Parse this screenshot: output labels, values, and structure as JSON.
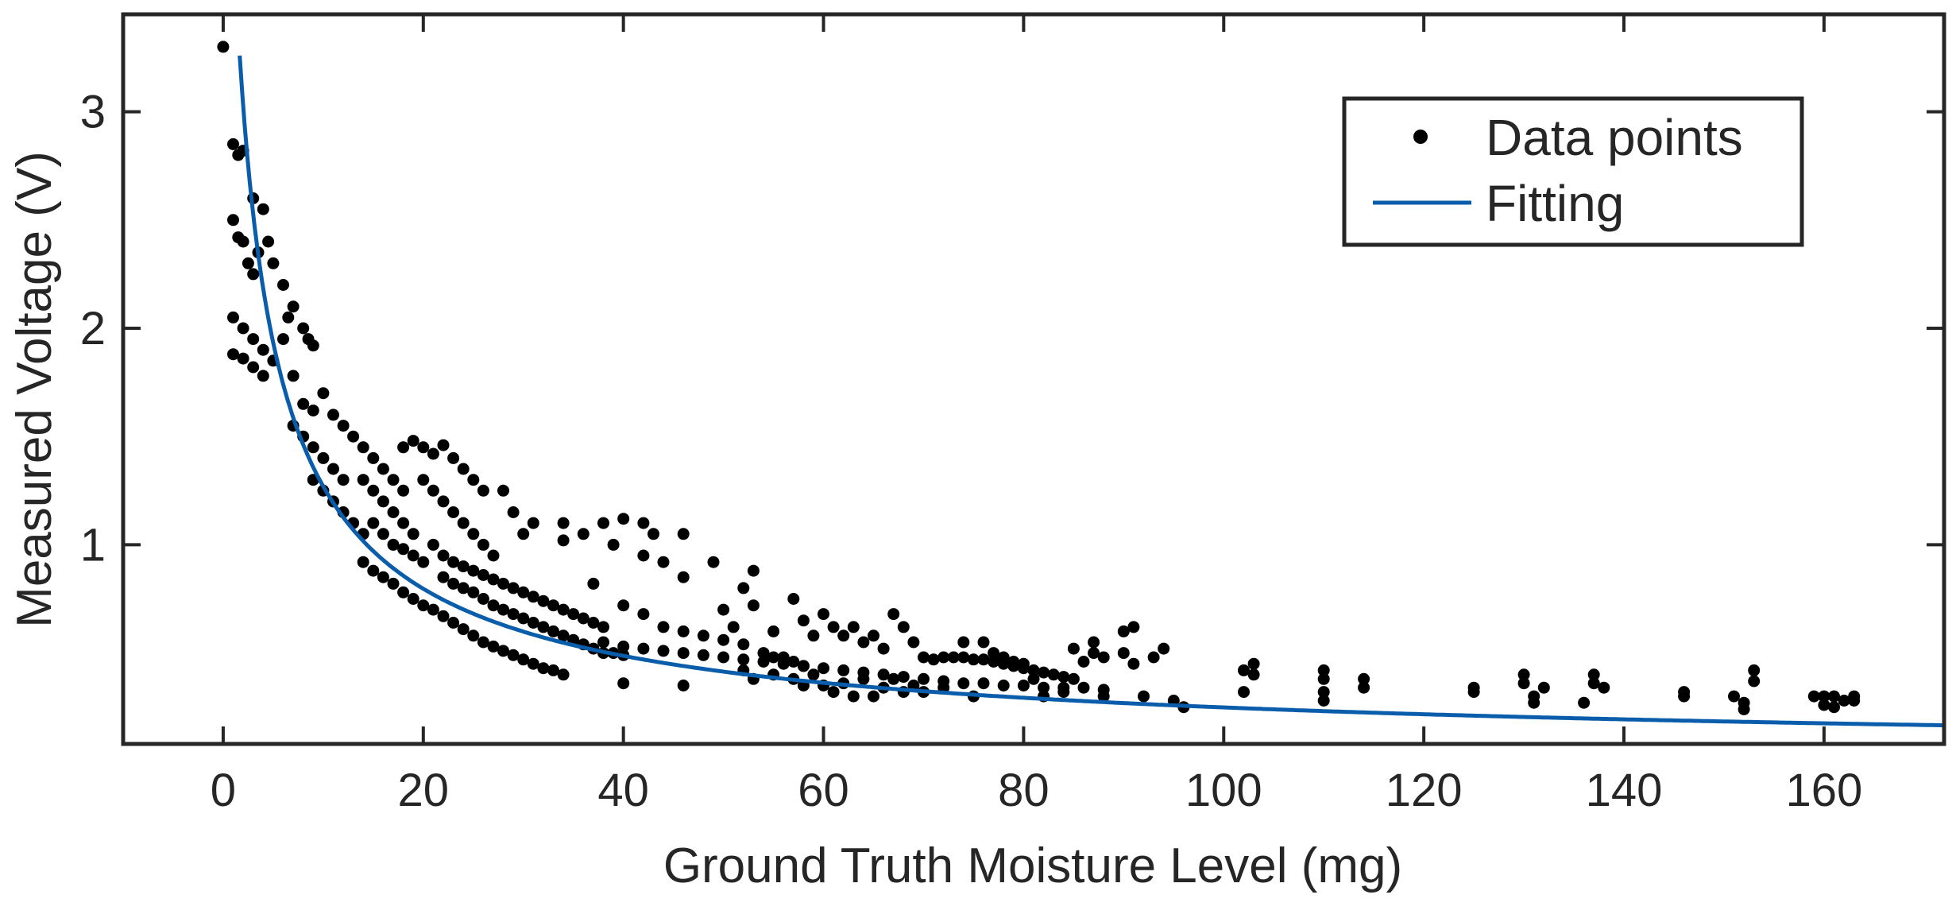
{
  "chart_data": {
    "type": "scatter",
    "title": "",
    "xlabel": "Ground Truth Moisture Level (mg)",
    "ylabel": "Measured Voltage (V)",
    "xlim": [
      -10,
      172
    ],
    "ylim": [
      0.08,
      3.45
    ],
    "xticks": [
      0,
      20,
      40,
      60,
      80,
      100,
      120,
      140,
      160
    ],
    "yticks": [
      1,
      2,
      3
    ],
    "grid": false,
    "legend": {
      "position": "top-right",
      "entries": [
        {
          "label": "Data points",
          "kind": "marker",
          "color": "#000000"
        },
        {
          "label": "Fitting",
          "kind": "line",
          "color": "#0A5DAA"
        }
      ]
    },
    "series": [
      {
        "name": "Data points",
        "kind": "scatter",
        "color": "#000000",
        "points": [
          [
            0,
            3.3
          ],
          [
            1,
            2.85
          ],
          [
            1.5,
            2.8
          ],
          [
            2,
            2.82
          ],
          [
            1,
            2.5
          ],
          [
            1.5,
            2.42
          ],
          [
            2,
            2.4
          ],
          [
            2.5,
            2.3
          ],
          [
            3,
            2.25
          ],
          [
            3.5,
            2.35
          ],
          [
            3,
            2.6
          ],
          [
            4,
            2.55
          ],
          [
            4.5,
            2.4
          ],
          [
            5,
            2.3
          ],
          [
            1,
            2.05
          ],
          [
            2,
            2.0
          ],
          [
            3,
            1.95
          ],
          [
            4,
            1.9
          ],
          [
            5,
            1.85
          ],
          [
            1,
            1.88
          ],
          [
            2,
            1.86
          ],
          [
            3,
            1.82
          ],
          [
            4,
            1.78
          ],
          [
            6,
            2.2
          ],
          [
            6.5,
            2.05
          ],
          [
            7,
            2.1
          ],
          [
            8,
            2.0
          ],
          [
            8.5,
            1.95
          ],
          [
            9,
            1.92
          ],
          [
            6,
            1.95
          ],
          [
            7,
            1.78
          ],
          [
            8,
            1.65
          ],
          [
            9,
            1.62
          ],
          [
            10,
            1.7
          ],
          [
            11,
            1.6
          ],
          [
            12,
            1.55
          ],
          [
            7,
            1.55
          ],
          [
            8,
            1.5
          ],
          [
            9,
            1.45
          ],
          [
            10,
            1.4
          ],
          [
            11,
            1.35
          ],
          [
            12,
            1.3
          ],
          [
            9,
            1.3
          ],
          [
            10,
            1.25
          ],
          [
            11,
            1.2
          ],
          [
            12,
            1.15
          ],
          [
            13,
            1.1
          ],
          [
            14,
            1.05
          ],
          [
            13,
            1.5
          ],
          [
            14,
            1.45
          ],
          [
            15,
            1.4
          ],
          [
            16,
            1.35
          ],
          [
            17,
            1.3
          ],
          [
            18,
            1.25
          ],
          [
            14,
            1.3
          ],
          [
            15,
            1.25
          ],
          [
            16,
            1.2
          ],
          [
            17,
            1.15
          ],
          [
            18,
            1.1
          ],
          [
            19,
            1.05
          ],
          [
            15,
            1.1
          ],
          [
            16,
            1.05
          ],
          [
            17,
            1.0
          ],
          [
            18,
            0.98
          ],
          [
            19,
            0.95
          ],
          [
            20,
            0.92
          ],
          [
            14,
            0.92
          ],
          [
            15,
            0.88
          ],
          [
            16,
            0.85
          ],
          [
            17,
            0.82
          ],
          [
            18,
            0.78
          ],
          [
            19,
            0.75
          ],
          [
            20,
            0.72
          ],
          [
            21,
            0.7
          ],
          [
            22,
            0.67
          ],
          [
            23,
            0.64
          ],
          [
            24,
            0.61
          ],
          [
            25,
            0.58
          ],
          [
            26,
            0.55
          ],
          [
            27,
            0.53
          ],
          [
            28,
            0.51
          ],
          [
            29,
            0.49
          ],
          [
            30,
            0.47
          ],
          [
            31,
            0.45
          ],
          [
            32,
            0.43
          ],
          [
            33,
            0.42
          ],
          [
            34,
            0.4
          ],
          [
            18,
            1.45
          ],
          [
            19,
            1.48
          ],
          [
            20,
            1.45
          ],
          [
            21,
            1.42
          ],
          [
            22,
            1.46
          ],
          [
            23,
            1.4
          ],
          [
            24,
            1.35
          ],
          [
            25,
            1.3
          ],
          [
            20,
            1.3
          ],
          [
            21,
            1.25
          ],
          [
            22,
            1.2
          ],
          [
            23,
            1.15
          ],
          [
            24,
            1.1
          ],
          [
            25,
            1.05
          ],
          [
            26,
            1.0
          ],
          [
            27,
            0.95
          ],
          [
            21,
            1.0
          ],
          [
            22,
            0.95
          ],
          [
            23,
            0.92
          ],
          [
            24,
            0.9
          ],
          [
            25,
            0.88
          ],
          [
            26,
            0.86
          ],
          [
            27,
            0.84
          ],
          [
            28,
            0.82
          ],
          [
            29,
            0.8
          ],
          [
            30,
            0.78
          ],
          [
            31,
            0.76
          ],
          [
            32,
            0.74
          ],
          [
            33,
            0.72
          ],
          [
            34,
            0.7
          ],
          [
            35,
            0.68
          ],
          [
            36,
            0.66
          ],
          [
            37,
            0.64
          ],
          [
            38,
            0.62
          ],
          [
            22,
            0.85
          ],
          [
            23,
            0.82
          ],
          [
            24,
            0.8
          ],
          [
            25,
            0.78
          ],
          [
            26,
            0.75
          ],
          [
            27,
            0.72
          ],
          [
            28,
            0.7
          ],
          [
            29,
            0.68
          ],
          [
            30,
            0.66
          ],
          [
            31,
            0.64
          ],
          [
            32,
            0.62
          ],
          [
            33,
            0.6
          ],
          [
            34,
            0.58
          ],
          [
            35,
            0.56
          ],
          [
            36,
            0.54
          ],
          [
            37,
            0.52
          ],
          [
            38,
            0.5
          ],
          [
            39,
            0.5
          ],
          [
            40,
            0.49
          ],
          [
            26,
            1.25
          ],
          [
            28,
            1.25
          ],
          [
            29,
            1.15
          ],
          [
            30,
            1.05
          ],
          [
            31,
            1.1
          ],
          [
            34,
            1.1
          ],
          [
            34,
            1.02
          ],
          [
            36,
            1.05
          ],
          [
            38,
            1.1
          ],
          [
            39,
            1.0
          ],
          [
            40,
            1.12
          ],
          [
            42,
            1.1
          ],
          [
            43,
            1.05
          ],
          [
            42,
            0.95
          ],
          [
            44,
            0.92
          ],
          [
            46,
            1.05
          ],
          [
            46,
            0.85
          ],
          [
            49,
            0.92
          ],
          [
            52,
            0.8
          ],
          [
            53,
            0.88
          ],
          [
            37,
            0.82
          ],
          [
            40,
            0.72
          ],
          [
            42,
            0.68
          ],
          [
            44,
            0.62
          ],
          [
            46,
            0.6
          ],
          [
            48,
            0.58
          ],
          [
            50,
            0.56
          ],
          [
            52,
            0.54
          ],
          [
            54,
            0.5
          ],
          [
            55,
            0.48
          ],
          [
            56,
            0.48
          ],
          [
            57,
            0.46
          ],
          [
            58,
            0.44
          ],
          [
            38,
            0.55
          ],
          [
            40,
            0.53
          ],
          [
            42,
            0.52
          ],
          [
            44,
            0.51
          ],
          [
            46,
            0.5
          ],
          [
            48,
            0.49
          ],
          [
            50,
            0.48
          ],
          [
            52,
            0.47
          ],
          [
            54,
            0.46
          ],
          [
            56,
            0.45
          ],
          [
            58,
            0.44
          ],
          [
            60,
            0.43
          ],
          [
            62,
            0.42
          ],
          [
            64,
            0.41
          ],
          [
            66,
            0.4
          ],
          [
            68,
            0.39
          ],
          [
            70,
            0.38
          ],
          [
            72,
            0.37
          ],
          [
            74,
            0.36
          ],
          [
            76,
            0.36
          ],
          [
            78,
            0.35
          ],
          [
            80,
            0.35
          ],
          [
            82,
            0.34
          ],
          [
            84,
            0.34
          ],
          [
            86,
            0.34
          ],
          [
            88,
            0.33
          ],
          [
            40,
            0.36
          ],
          [
            46,
            0.35
          ],
          [
            50,
            0.7
          ],
          [
            51,
            0.62
          ],
          [
            53,
            0.72
          ],
          [
            55,
            0.6
          ],
          [
            57,
            0.75
          ],
          [
            58,
            0.65
          ],
          [
            59,
            0.58
          ],
          [
            60,
            0.68
          ],
          [
            61,
            0.62
          ],
          [
            62,
            0.58
          ],
          [
            63,
            0.62
          ],
          [
            64,
            0.55
          ],
          [
            65,
            0.58
          ],
          [
            66,
            0.52
          ],
          [
            67,
            0.68
          ],
          [
            68,
            0.62
          ],
          [
            69,
            0.55
          ],
          [
            52,
            0.42
          ],
          [
            53,
            0.38
          ],
          [
            55,
            0.4
          ],
          [
            57,
            0.38
          ],
          [
            58,
            0.35
          ],
          [
            59,
            0.4
          ],
          [
            60,
            0.35
          ],
          [
            61,
            0.32
          ],
          [
            62,
            0.36
          ],
          [
            63,
            0.3
          ],
          [
            64,
            0.38
          ],
          [
            65,
            0.3
          ],
          [
            66,
            0.34
          ],
          [
            67,
            0.38
          ],
          [
            68,
            0.32
          ],
          [
            69,
            0.35
          ],
          [
            70,
            0.48
          ],
          [
            71,
            0.47
          ],
          [
            72,
            0.48
          ],
          [
            73,
            0.48
          ],
          [
            74,
            0.48
          ],
          [
            75,
            0.47
          ],
          [
            76,
            0.47
          ],
          [
            77,
            0.46
          ],
          [
            78,
            0.45
          ],
          [
            79,
            0.44
          ],
          [
            80,
            0.43
          ],
          [
            81,
            0.42
          ],
          [
            82,
            0.41
          ],
          [
            83,
            0.4
          ],
          [
            84,
            0.39
          ],
          [
            85,
            0.38
          ],
          [
            70,
            0.32
          ],
          [
            72,
            0.34
          ],
          [
            74,
            0.55
          ],
          [
            75,
            0.3
          ],
          [
            76,
            0.55
          ],
          [
            77,
            0.5
          ],
          [
            78,
            0.48
          ],
          [
            79,
            0.46
          ],
          [
            80,
            0.45
          ],
          [
            81,
            0.38
          ],
          [
            82,
            0.3
          ],
          [
            84,
            0.32
          ],
          [
            85,
            0.52
          ],
          [
            86,
            0.46
          ],
          [
            87,
            0.5
          ],
          [
            87,
            0.55
          ],
          [
            88,
            0.48
          ],
          [
            88,
            0.3
          ],
          [
            90,
            0.6
          ],
          [
            90,
            0.5
          ],
          [
            91,
            0.62
          ],
          [
            91,
            0.45
          ],
          [
            92,
            0.3
          ],
          [
            93,
            0.48
          ],
          [
            94,
            0.52
          ],
          [
            95,
            0.28
          ],
          [
            96,
            0.25
          ],
          [
            102,
            0.42
          ],
          [
            102,
            0.32
          ],
          [
            103,
            0.45
          ],
          [
            103,
            0.4
          ],
          [
            110,
            0.42
          ],
          [
            110,
            0.38
          ],
          [
            110,
            0.32
          ],
          [
            110,
            0.28
          ],
          [
            114,
            0.38
          ],
          [
            114,
            0.34
          ],
          [
            125,
            0.34
          ],
          [
            125,
            0.32
          ],
          [
            130,
            0.4
          ],
          [
            130,
            0.36
          ],
          [
            131,
            0.3
          ],
          [
            131,
            0.27
          ],
          [
            132,
            0.34
          ],
          [
            136,
            0.27
          ],
          [
            137,
            0.4
          ],
          [
            137,
            0.36
          ],
          [
            138,
            0.34
          ],
          [
            146,
            0.32
          ],
          [
            146,
            0.3
          ],
          [
            151,
            0.3
          ],
          [
            152,
            0.27
          ],
          [
            152,
            0.24
          ],
          [
            153,
            0.42
          ],
          [
            153,
            0.37
          ],
          [
            159,
            0.3
          ],
          [
            160,
            0.3
          ],
          [
            160,
            0.26
          ],
          [
            161,
            0.3
          ],
          [
            161,
            0.25
          ],
          [
            162,
            0.28
          ],
          [
            163,
            0.3
          ],
          [
            163,
            0.28
          ]
        ]
      },
      {
        "name": "Fitting",
        "kind": "line",
        "color": "#0A5DAA",
        "function": "V = 8.11 / (m + 1.7)^0.754"
      }
    ]
  }
}
